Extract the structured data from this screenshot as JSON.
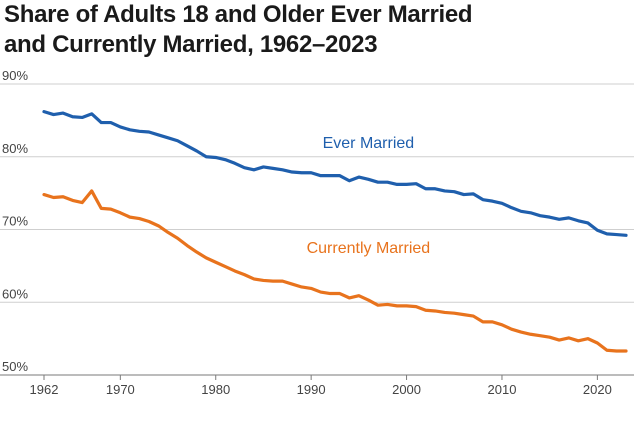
{
  "chart_data": {
    "type": "line",
    "title_lines": [
      "Share of Adults 18 and Older Ever Married",
      "and Currently Married, 1962–2023"
    ],
    "xlabel": "",
    "ylabel": "",
    "xlim": [
      1962,
      2023
    ],
    "ylim": [
      50,
      90
    ],
    "x_ticks": [
      {
        "value": 1962,
        "label": "1962"
      },
      {
        "value": 1970,
        "label": "1970"
      },
      {
        "value": 1980,
        "label": "1980"
      },
      {
        "value": 1990,
        "label": "1990"
      },
      {
        "value": 2000,
        "label": "2000"
      },
      {
        "value": 2010,
        "label": "2010"
      },
      {
        "value": 2020,
        "label": "2020"
      }
    ],
    "y_ticks": [
      {
        "value": 90,
        "label": "90%"
      },
      {
        "value": 80,
        "label": "80%"
      },
      {
        "value": 70,
        "label": "70%"
      },
      {
        "value": 60,
        "label": "60%"
      },
      {
        "value": 50,
        "label": "50%"
      }
    ],
    "grid": true,
    "x": [
      1962,
      1963,
      1964,
      1965,
      1966,
      1967,
      1968,
      1969,
      1970,
      1971,
      1972,
      1973,
      1974,
      1975,
      1976,
      1977,
      1978,
      1979,
      1980,
      1981,
      1982,
      1983,
      1984,
      1985,
      1986,
      1987,
      1988,
      1989,
      1990,
      1991,
      1992,
      1993,
      1994,
      1995,
      1996,
      1997,
      1998,
      1999,
      2000,
      2001,
      2002,
      2003,
      2004,
      2005,
      2006,
      2007,
      2008,
      2009,
      2010,
      2011,
      2012,
      2013,
      2014,
      2015,
      2016,
      2017,
      2018,
      2019,
      2020,
      2021,
      2022,
      2023
    ],
    "series": [
      {
        "name": "Ever Married",
        "color": "#1f5fad",
        "label_x": 1996,
        "label_y": 81.2,
        "values": [
          86.2,
          85.8,
          86.0,
          85.5,
          85.4,
          85.9,
          84.7,
          84.7,
          84.1,
          83.7,
          83.5,
          83.4,
          83.0,
          82.6,
          82.2,
          81.5,
          80.8,
          80.0,
          79.9,
          79.6,
          79.1,
          78.5,
          78.2,
          78.6,
          78.4,
          78.2,
          77.9,
          77.8,
          77.8,
          77.4,
          77.4,
          77.4,
          76.7,
          77.2,
          76.9,
          76.5,
          76.5,
          76.2,
          76.2,
          76.3,
          75.6,
          75.6,
          75.3,
          75.2,
          74.8,
          74.9,
          74.1,
          73.9,
          73.6,
          73.0,
          72.5,
          72.3,
          71.9,
          71.7,
          71.4,
          71.6,
          71.2,
          70.9,
          69.9,
          69.4,
          69.3,
          69.2
        ]
      },
      {
        "name": "Currently Married",
        "color": "#e8731d",
        "label_x": 1996,
        "label_y": 66.8,
        "values": [
          74.8,
          74.4,
          74.5,
          74.0,
          73.7,
          75.3,
          72.9,
          72.8,
          72.3,
          71.7,
          71.5,
          71.1,
          70.5,
          69.6,
          68.8,
          67.8,
          66.9,
          66.1,
          65.5,
          64.9,
          64.3,
          63.8,
          63.2,
          63.0,
          62.9,
          62.9,
          62.5,
          62.1,
          61.9,
          61.4,
          61.2,
          61.2,
          60.6,
          60.9,
          60.3,
          59.6,
          59.7,
          59.5,
          59.5,
          59.4,
          58.9,
          58.8,
          58.6,
          58.5,
          58.3,
          58.1,
          57.3,
          57.3,
          56.9,
          56.3,
          55.9,
          55.6,
          55.4,
          55.2,
          54.8,
          55.1,
          54.7,
          55.0,
          54.4,
          53.4,
          53.3,
          53.3
        ]
      }
    ]
  }
}
